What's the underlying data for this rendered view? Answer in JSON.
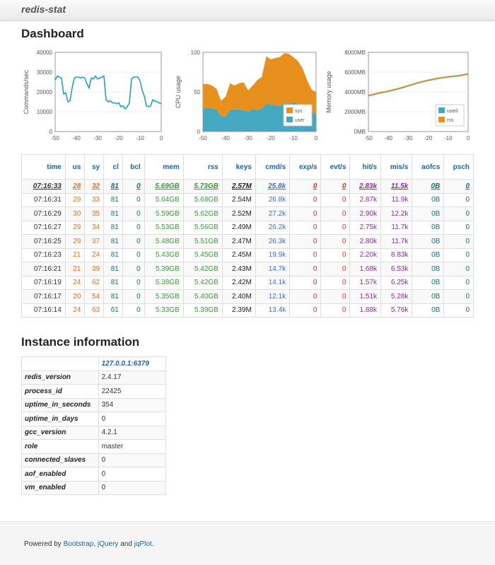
{
  "app": {
    "brand": "redis-stat"
  },
  "dashboard": {
    "title": "Dashboard"
  },
  "charts": {
    "commands": {
      "ylabel": "Commands/sec",
      "yticks": [
        "40000",
        "30000",
        "20000",
        "10000",
        "0"
      ],
      "xticks": [
        "-50",
        "-40",
        "-30",
        "-20",
        "-10",
        "0"
      ]
    },
    "cpu": {
      "ylabel": "CPU usage",
      "yticks": [
        "100",
        "50",
        "0"
      ],
      "xticks": [
        "-50",
        "-40",
        "-30",
        "-20",
        "-10",
        "0"
      ],
      "legend": [
        "sys",
        "user"
      ]
    },
    "memory": {
      "ylabel": "Memory usage",
      "yticks": [
        "8000MB",
        "6000MB",
        "4000MB",
        "2000MB",
        "0MB"
      ],
      "xticks": [
        "-50",
        "-40",
        "-30",
        "-20",
        "-10",
        "0"
      ],
      "legend": [
        "used",
        "rss"
      ]
    }
  },
  "chart_data": [
    {
      "type": "line",
      "ylabel": "Commands/sec",
      "xlim": [
        -50,
        0
      ],
      "ylim": [
        0,
        40000
      ],
      "x": [
        -50,
        -49,
        -48,
        -47,
        -46,
        -45,
        -44,
        -43,
        -42,
        -41,
        -40,
        -39,
        -38,
        -37,
        -36,
        -35,
        -34,
        -33,
        -32,
        -31,
        -30,
        -29,
        -28,
        -27,
        -26,
        -25,
        -24,
        -23,
        -22,
        -21,
        -20,
        -19,
        -18,
        -17,
        -16,
        -15,
        -14,
        -13,
        -12,
        -11,
        -10,
        -9,
        -8,
        -7,
        -6,
        -5,
        -4,
        -3,
        -2,
        -1,
        0
      ],
      "series": [
        {
          "values": [
            26000,
            28000,
            27500,
            27000,
            19000,
            19500,
            15000,
            15500,
            22000,
            27000,
            27500,
            27500,
            27000,
            27500,
            27000,
            24000,
            22000,
            27000,
            26500,
            28000,
            26500,
            27000,
            27500,
            28000,
            16000,
            15000,
            15500,
            14500,
            14500,
            14000,
            14500,
            12500,
            13000,
            11500,
            12500,
            14500,
            26500,
            27500,
            27500,
            27500,
            25500,
            21000,
            18000,
            13000,
            12500,
            13000,
            16000,
            15500,
            15000,
            14500,
            14000
          ]
        }
      ]
    },
    {
      "type": "area",
      "ylabel": "CPU usage",
      "xlim": [
        -50,
        0
      ],
      "ylim": [
        0,
        100
      ],
      "x": [
        -50,
        -48,
        -46,
        -44,
        -42,
        -40,
        -38,
        -36,
        -34,
        -32,
        -30,
        -28,
        -26,
        -24,
        -22,
        -20,
        -18,
        -16,
        -14,
        -12,
        -10,
        -8,
        -6,
        -4,
        -2,
        0
      ],
      "series": [
        {
          "name": "user",
          "values": [
            29,
            30,
            29,
            28,
            19,
            19,
            27,
            28,
            28,
            27,
            25,
            28,
            27,
            29,
            35,
            34,
            33,
            32,
            36,
            35,
            37,
            35,
            34,
            30,
            26,
            21
          ]
        },
        {
          "name": "sys",
          "values": [
            31,
            30,
            29,
            26,
            20,
            25,
            34,
            30,
            33,
            35,
            27,
            30,
            38,
            40,
            60,
            57,
            60,
            62,
            63,
            63,
            57,
            54,
            46,
            35,
            27,
            29
          ]
        }
      ]
    },
    {
      "type": "line",
      "ylabel": "Memory usage",
      "xlim": [
        -50,
        0
      ],
      "ylim": [
        0,
        8000
      ],
      "x": [
        -50,
        -45,
        -40,
        -35,
        -30,
        -25,
        -20,
        -15,
        -10,
        -5,
        0
      ],
      "series": [
        {
          "name": "used",
          "values": [
            3600,
            3850,
            4050,
            4300,
            4600,
            4900,
            5150,
            5350,
            5500,
            5600,
            5800
          ]
        },
        {
          "name": "rss",
          "values": [
            3650,
            3900,
            4100,
            4350,
            4650,
            4950,
            5200,
            5400,
            5550,
            5650,
            5850
          ]
        }
      ]
    }
  ],
  "stats": {
    "headers": [
      "time",
      "us",
      "sy",
      "cl",
      "bcl",
      "mem",
      "rss",
      "keys",
      "cmd/s",
      "exp/s",
      "evt/s",
      "hit/s",
      "mis/s",
      "aofcs",
      "psch"
    ],
    "rows": [
      [
        "07:16:33",
        "28",
        "32",
        "81",
        "0",
        "5.69GB",
        "5.73GB",
        "2.57M",
        "25.8k",
        "0",
        "0",
        "2.83k",
        "11.5k",
        "0B",
        "0"
      ],
      [
        "07:16:31",
        "29",
        "33",
        "81",
        "0",
        "5.64GB",
        "5.68GB",
        "2.54M",
        "26.8k",
        "0",
        "0",
        "2.87k",
        "11.9k",
        "0B",
        "0"
      ],
      [
        "07:16:29",
        "30",
        "35",
        "81",
        "0",
        "5.59GB",
        "5.62GB",
        "2.52M",
        "27.2k",
        "0",
        "0",
        "2.90k",
        "12.2k",
        "0B",
        "0"
      ],
      [
        "07:16:27",
        "29",
        "34",
        "81",
        "0",
        "5.53GB",
        "5.56GB",
        "2.49M",
        "26.2k",
        "0",
        "0",
        "2.75k",
        "11.7k",
        "0B",
        "0"
      ],
      [
        "07:16:25",
        "29",
        "37",
        "81",
        "0",
        "5.48GB",
        "5.51GB",
        "2.47M",
        "26.3k",
        "0",
        "0",
        "2.80k",
        "11.7k",
        "0B",
        "0"
      ],
      [
        "07:16:23",
        "21",
        "24",
        "81",
        "0",
        "5.43GB",
        "5.45GB",
        "2.45M",
        "19.9k",
        "0",
        "0",
        "2.20k",
        "8.83k",
        "0B",
        "0"
      ],
      [
        "07:16:21",
        "21",
        "39",
        "81",
        "0",
        "5.39GB",
        "5.42GB",
        "2.43M",
        "14.7k",
        "0",
        "0",
        "1.68k",
        "6.53k",
        "0B",
        "0"
      ],
      [
        "07:16:19",
        "24",
        "62",
        "81",
        "0",
        "5.38GB",
        "5.42GB",
        "2.42M",
        "14.1k",
        "0",
        "0",
        "1.57k",
        "6.25k",
        "0B",
        "0"
      ],
      [
        "07:16:17",
        "20",
        "54",
        "81",
        "0",
        "5.35GB",
        "5.40GB",
        "2.40M",
        "12.1k",
        "0",
        "0",
        "1.51k",
        "5.28k",
        "0B",
        "0"
      ],
      [
        "07:16:14",
        "24",
        "63",
        "61",
        "0",
        "5.33GB",
        "5.39GB",
        "2.39M",
        "13.4k",
        "0",
        "0",
        "1.88k",
        "5.76k",
        "0B",
        "0"
      ]
    ]
  },
  "instance": {
    "title": "Instance information",
    "host": "127.0.0.1:6379",
    "rows": [
      [
        "redis_version",
        "2.4.17"
      ],
      [
        "process_id",
        "22425"
      ],
      [
        "uptime_in_seconds",
        "354"
      ],
      [
        "uptime_in_days",
        "0"
      ],
      [
        "gcc_version",
        "4.2.1"
      ],
      [
        "role",
        "master"
      ],
      [
        "connected_slaves",
        "0"
      ],
      [
        "aof_enabled",
        "0"
      ],
      [
        "vm_enabled",
        "0"
      ]
    ]
  },
  "footer": {
    "prefix": "Powered by ",
    "link1": "Bootstrap",
    "sep1": ", ",
    "link2": "jQuery",
    "sep2": " and ",
    "link3": "jqPlot",
    "suffix": "."
  },
  "colors": {
    "line": "#27a0b5",
    "user": "#44a8c0",
    "sys": "#e8901e",
    "used": "#44a8c0",
    "rss": "#e8901e",
    "link": "#1e63a6"
  }
}
